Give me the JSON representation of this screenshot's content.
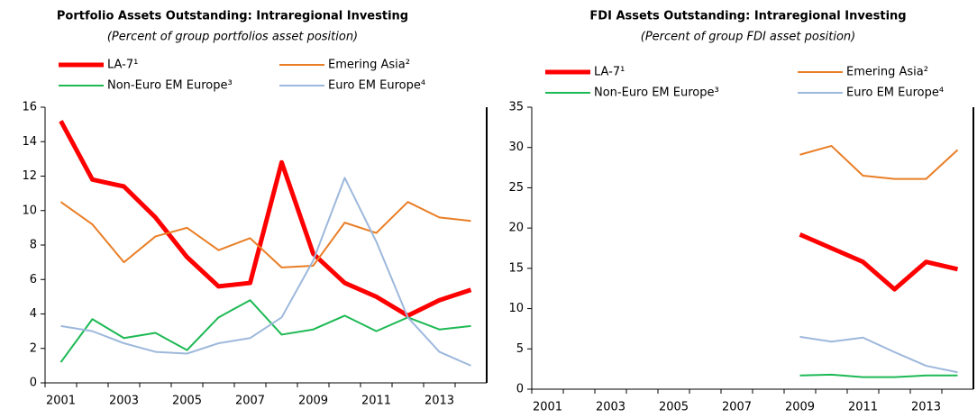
{
  "chart_data": [
    {
      "type": "line",
      "title": "Portfolio Assets Outstanding: Intraregional Investing",
      "subtitle": "(Percent of group portfolios asset position)",
      "categories": [
        "2001",
        null,
        "2003",
        null,
        "2005",
        null,
        "2007",
        null,
        "2009",
        null,
        "2011",
        null,
        "2013",
        null
      ],
      "ylim": [
        0,
        16
      ],
      "yticks": [
        0,
        2,
        4,
        6,
        8,
        10,
        12,
        14,
        16
      ],
      "series": [
        {
          "name": "LA-7¹",
          "color": "#ff0000",
          "line_width": 5,
          "values": [
            15.2,
            11.8,
            11.4,
            9.6,
            7.3,
            5.6,
            5.8,
            12.8,
            7.5,
            5.8,
            5.0,
            3.9,
            4.8,
            5.4
          ]
        },
        {
          "name": "Emering Asia²",
          "color": "#e97e26",
          "line_width": 2,
          "values": [
            10.5,
            9.2,
            7.0,
            8.5,
            9.0,
            7.7,
            8.4,
            6.7,
            6.8,
            9.3,
            8.7,
            10.5,
            9.6,
            9.4
          ]
        },
        {
          "name": "Non-Euro EM Europe³",
          "color": "#1db954",
          "line_width": 2,
          "values": [
            1.2,
            3.7,
            2.6,
            2.9,
            1.9,
            3.8,
            4.8,
            2.8,
            3.1,
            3.9,
            3.0,
            3.8,
            3.1,
            3.3
          ]
        },
        {
          "name": "Euro EM Europe⁴",
          "color": "#9db8dc",
          "line_width": 2,
          "values": [
            3.3,
            3.0,
            2.3,
            1.8,
            1.7,
            2.3,
            2.6,
            3.8,
            7.1,
            11.9,
            8.2,
            3.8,
            1.8,
            1.0
          ]
        }
      ]
    },
    {
      "type": "line",
      "title": "FDI Assets Outstanding: Intraregional Investing",
      "subtitle": "(Percent of group FDI asset position)",
      "categories": [
        "2001",
        null,
        "2003",
        null,
        "2005",
        null,
        "2007",
        null,
        "2009",
        null,
        "2011",
        null,
        "2013",
        null
      ],
      "ylim": [
        0,
        35
      ],
      "yticks": [
        0,
        5,
        10,
        15,
        20,
        25,
        30,
        35
      ],
      "series": [
        {
          "name": "LA-7¹",
          "color": "#ff0000",
          "line_width": 5,
          "values": [
            null,
            null,
            null,
            null,
            null,
            null,
            null,
            null,
            19.2,
            17.5,
            15.8,
            12.4,
            15.8,
            14.9
          ]
        },
        {
          "name": "Emering Asia²",
          "color": "#e97e26",
          "line_width": 2,
          "values": [
            null,
            null,
            null,
            null,
            null,
            null,
            null,
            null,
            29.1,
            30.2,
            26.5,
            26.1,
            26.1,
            29.7
          ]
        },
        {
          "name": "Non-Euro EM Europe³",
          "color": "#1db954",
          "line_width": 2,
          "values": [
            null,
            null,
            null,
            null,
            null,
            null,
            null,
            null,
            1.7,
            1.8,
            1.5,
            1.5,
            1.7,
            1.7
          ]
        },
        {
          "name": "Euro EM Europe⁴",
          "color": "#9db8dc",
          "line_width": 2,
          "values": [
            null,
            null,
            null,
            null,
            null,
            null,
            null,
            null,
            6.5,
            5.9,
            6.4,
            4.6,
            2.9,
            2.1
          ]
        }
      ]
    }
  ]
}
